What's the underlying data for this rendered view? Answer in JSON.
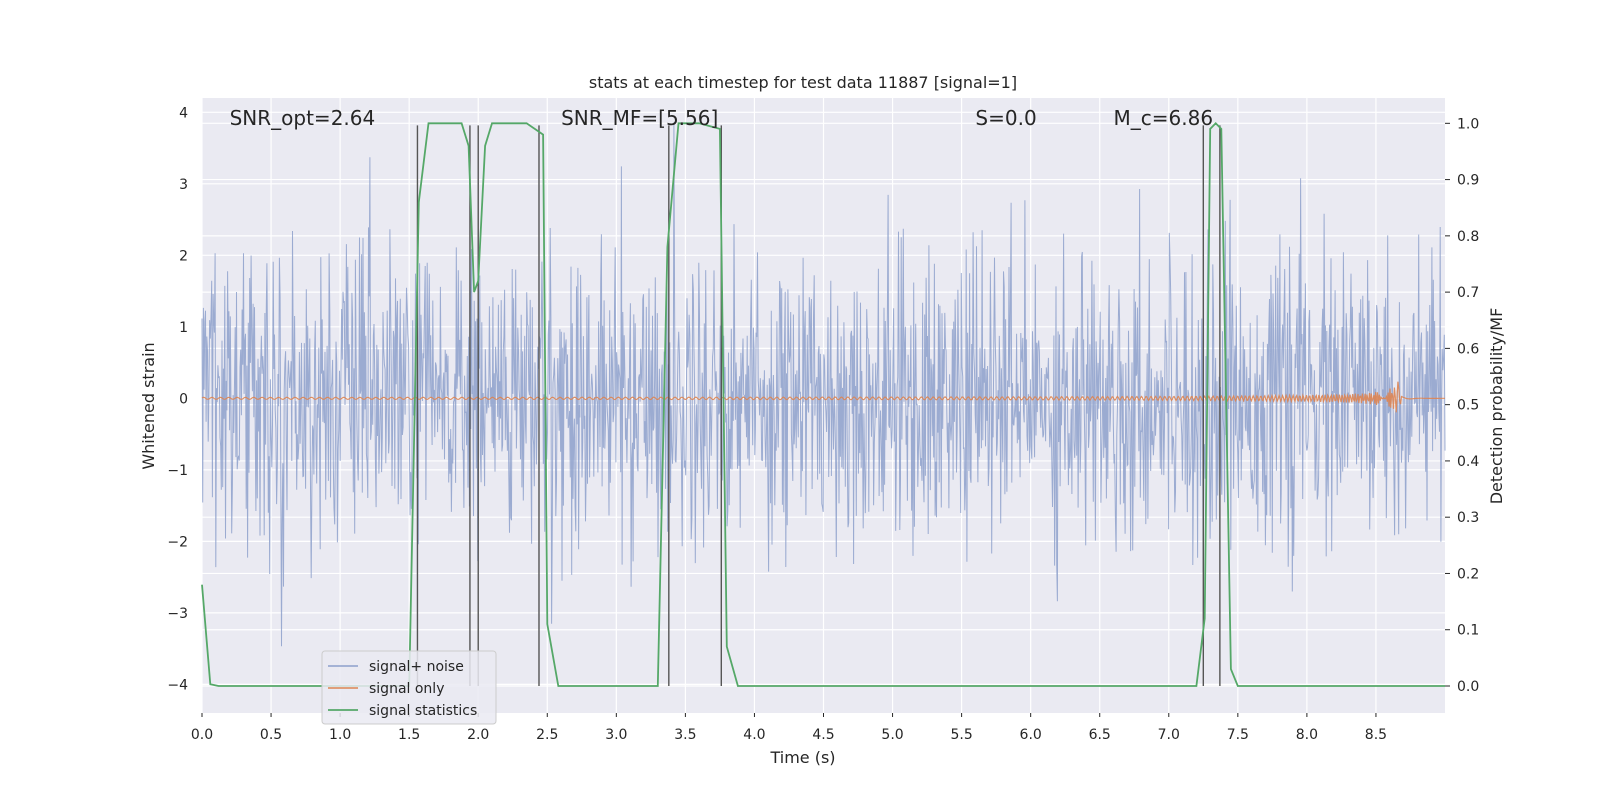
{
  "chart_data": {
    "type": "line",
    "title": "stats at each timestep for test data 11887 [signal=1]",
    "xlabel": "Time (s)",
    "ylabel_left": "Whitened strain",
    "ylabel_right": "Detection probability/MF",
    "xlim": [
      0.0,
      9.0
    ],
    "ylim_left": [
      -4.4,
      4.2
    ],
    "ylim_right": [
      -0.048,
      1.045
    ],
    "xticks": [
      "0.0",
      "0.5",
      "1.0",
      "1.5",
      "2.0",
      "2.5",
      "3.0",
      "3.5",
      "4.0",
      "4.5",
      "5.0",
      "5.5",
      "6.0",
      "6.5",
      "7.0",
      "7.5",
      "8.0",
      "8.5"
    ],
    "yticks_left": [
      "4",
      "3",
      "2",
      "1",
      "0",
      "−1",
      "−2",
      "−3",
      "−4"
    ],
    "yticks_left_values": [
      4,
      3,
      2,
      1,
      0,
      -1,
      -2,
      -3,
      -4
    ],
    "yticks_right": [
      "1.0",
      "0.9",
      "0.8",
      "0.7",
      "0.6",
      "0.5",
      "0.4",
      "0.3",
      "0.2",
      "0.1",
      "0.0"
    ],
    "yticks_right_values": [
      1.0,
      0.9,
      0.8,
      0.7,
      0.6,
      0.5,
      0.4,
      0.3,
      0.2,
      0.1,
      0.0
    ],
    "annotations": [
      {
        "text": "SNR_opt=2.64",
        "x": 0.2,
        "y": 3.85
      },
      {
        "text": "SNR_MF=[5.56]",
        "x": 2.6,
        "y": 3.85
      },
      {
        "text": "S=0.0",
        "x": 5.6,
        "y": 3.85
      },
      {
        "text": "M_c=6.86",
        "x": 6.6,
        "y": 3.85
      }
    ],
    "series": [
      {
        "name": "signal+ noise",
        "color": "#8da0cb",
        "noise_sigma": 1.0,
        "n_samples": 1800,
        "t_range": [
          0.0,
          9.0
        ]
      },
      {
        "name": "signal only",
        "color": "#dd8452",
        "chirp_end": 8.68,
        "chirp_peak": 0.35
      },
      {
        "name": "signal statistics",
        "color": "#55a868",
        "x": [
          0.0,
          0.06,
          0.12,
          1.5,
          1.57,
          1.64,
          1.8,
          1.88,
          1.93,
          1.97,
          2.0,
          2.05,
          2.1,
          2.35,
          2.41,
          2.47,
          2.5,
          2.58,
          3.3,
          3.37,
          3.45,
          3.6,
          3.75,
          3.8,
          3.88,
          7.2,
          7.26,
          7.3,
          7.34,
          7.38,
          7.45,
          7.5,
          9.0
        ],
        "values": [
          0.18,
          0.003,
          0.0,
          0.0,
          0.86,
          1.0,
          1.0,
          1.0,
          0.96,
          0.7,
          0.72,
          0.96,
          1.0,
          1.0,
          0.99,
          0.98,
          0.11,
          0.0,
          0.0,
          0.78,
          1.0,
          1.0,
          0.99,
          0.07,
          0.0,
          0.0,
          0.12,
          0.99,
          1.0,
          0.99,
          0.03,
          0.0,
          0.0
        ]
      }
    ],
    "vlines": [
      1.56,
      1.94,
      2.0,
      2.44,
      3.38,
      3.76,
      7.25,
      7.37
    ],
    "legend": {
      "location": "lower-left",
      "entries": [
        "signal+ noise",
        "signal only",
        "signal statistics"
      ]
    }
  }
}
